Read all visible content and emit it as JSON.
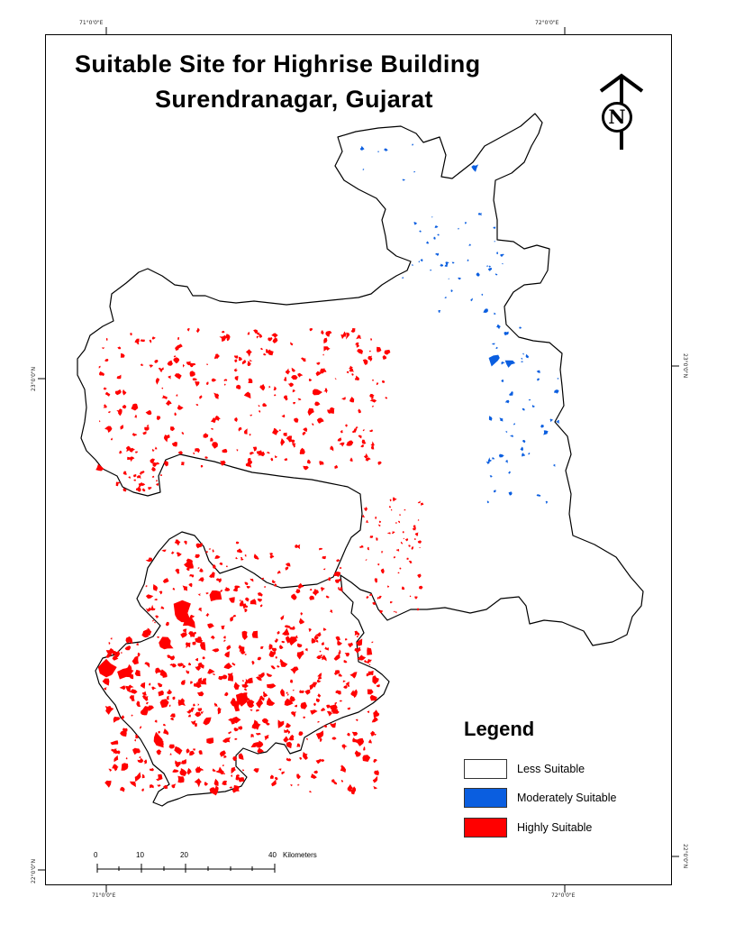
{
  "map": {
    "title_line1": "Suitable Site for Highrise Building",
    "title_line2": "Surendranagar, Gujarat",
    "graticule": {
      "top_left": "71°0'0\"E",
      "top_right": "72°0'0\"E",
      "bottom_left": "71°0'0\"E",
      "bottom_right": "72°0'0\"E",
      "left_upper": "23°0'0\"N",
      "left_lower": "22°0'0\"N",
      "right_upper": "23°0'0\"N",
      "right_lower": "22°0'0\"N"
    },
    "north_arrow": {
      "letter": "N",
      "icon": "north-arrow-icon"
    },
    "legend": {
      "title": "Legend",
      "items": [
        {
          "label": "Less Suitable",
          "color": "#ffffff"
        },
        {
          "label": "Moderately Suitable",
          "color": "#0a5ee0"
        },
        {
          "label": "Highly Suitable",
          "color": "#ff0000"
        }
      ]
    },
    "scale_bar": {
      "ticks": [
        "0",
        "10",
        "20",
        "40"
      ],
      "unit": "Kilometers"
    },
    "colors": {
      "highly": "#ff0000",
      "moderately": "#0a5ee0",
      "less": "#ffffff",
      "boundary": "#000000"
    }
  }
}
